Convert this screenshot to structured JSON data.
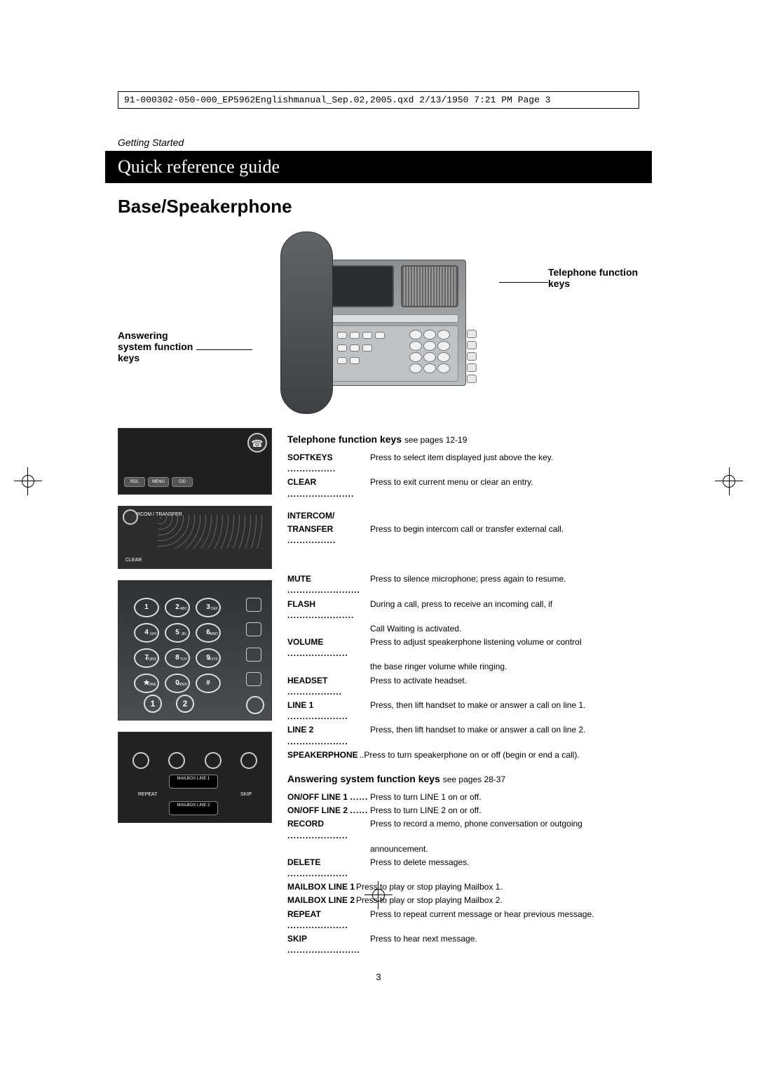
{
  "header_line": "91-000302-050-000_EP5962Englishmanual_Sep.02,2005.qxd  2/13/1950  7:21 PM  Page 3",
  "section_label": "Getting Started",
  "banner": "Quick reference guide",
  "title": "Base/Speakerphone",
  "label_left": "Answering system function keys",
  "label_right": "Telephone function keys",
  "thumb1": {
    "soft": [
      "RDL",
      "MENU",
      "CID"
    ]
  },
  "thumb2": {
    "lbl1": "INTERCOM / TRANSFER",
    "lbl2": "CLEAR"
  },
  "thumb3": {
    "keys": [
      {
        "d": "1",
        "s": ""
      },
      {
        "d": "2",
        "s": "ABC"
      },
      {
        "d": "3",
        "s": "DEF"
      },
      {
        "d": "4",
        "s": "GHI"
      },
      {
        "d": "5",
        "s": "JKL"
      },
      {
        "d": "6",
        "s": "MNO"
      },
      {
        "d": "7",
        "s": "PQRS"
      },
      {
        "d": "8",
        "s": "TUV"
      },
      {
        "d": "9",
        "s": "WXYZ"
      },
      {
        "d": "★",
        "s": "TONE"
      },
      {
        "d": "0",
        "s": "OPER"
      },
      {
        "d": "#",
        "s": ""
      }
    ],
    "lines": [
      "1",
      "2"
    ]
  },
  "thumb4": {
    "labels": [
      "ON/OFF LINE 1",
      "RECORD",
      "DELETE",
      "ON/OFF LINE 2"
    ],
    "mbx1": "MAILBOX LINE 1",
    "mbx2": "MAILBOX LINE 2",
    "rep": "REPEAT",
    "skip": "SKIP"
  },
  "tel_head": "Telephone function keys",
  "tel_head_ref": "see pages 12-19",
  "tel1": [
    {
      "k": "SOFTKEYS",
      "v": "Press to select item displayed just above the key."
    },
    {
      "k": "CLEAR",
      "v": "Press to exit current menu or clear an entry."
    }
  ],
  "intercom_head": "INTERCOM/",
  "tel2": [
    {
      "k": "TRANSFER",
      "v": "Press to begin intercom call or transfer external call."
    }
  ],
  "tel3": [
    {
      "k": "MUTE",
      "v": "Press to silence microphone; press again to resume."
    },
    {
      "k": "FLASH",
      "v": "During a call, press to receive an incoming call, if",
      "cont": "Call Waiting is activated."
    },
    {
      "k": "VOLUME",
      "v": "Press to adjust speakerphone listening volume or control",
      "cont": "the base ringer volume while ringing."
    },
    {
      "k": "HEADSET",
      "v": "Press to activate headset."
    },
    {
      "k": "LINE 1",
      "v": "Press, then lift handset to make or answer a call on line 1."
    },
    {
      "k": "LINE 2",
      "v": "Press, then lift handset to make or answer a call on line 2."
    },
    {
      "k": "SPEAKERPHONE",
      "v": "..Press to turn speakerphone on or off (begin or end a call)."
    }
  ],
  "ans_head": "Answering system function keys",
  "ans_head_ref": "see pages 28-37",
  "ans": [
    {
      "k": "ON/OFF LINE 1",
      "v": "Press to turn LINE 1 on or off."
    },
    {
      "k": "ON/OFF LINE 2",
      "v": "Press to turn LINE 2 on or off."
    },
    {
      "k": "RECORD",
      "v": "Press to record a memo, phone conversation or outgoing",
      "cont": "announcement."
    },
    {
      "k": "DELETE",
      "v": "Press to delete messages."
    },
    {
      "k": "MAILBOX LINE 1",
      "v": "Press to play or stop playing Mailbox 1."
    },
    {
      "k": "MAILBOX LINE 2",
      "v": "Press to play or stop playing Mailbox 2."
    },
    {
      "k": "REPEAT",
      "v": "Press to repeat current message or hear previous message."
    },
    {
      "k": "SKIP",
      "v": "Press to hear next message."
    }
  ],
  "page_number": "3",
  "colors": {
    "banner_bg": "#000000",
    "banner_fg": "#ffffff",
    "body_bg": "#ffffff"
  }
}
